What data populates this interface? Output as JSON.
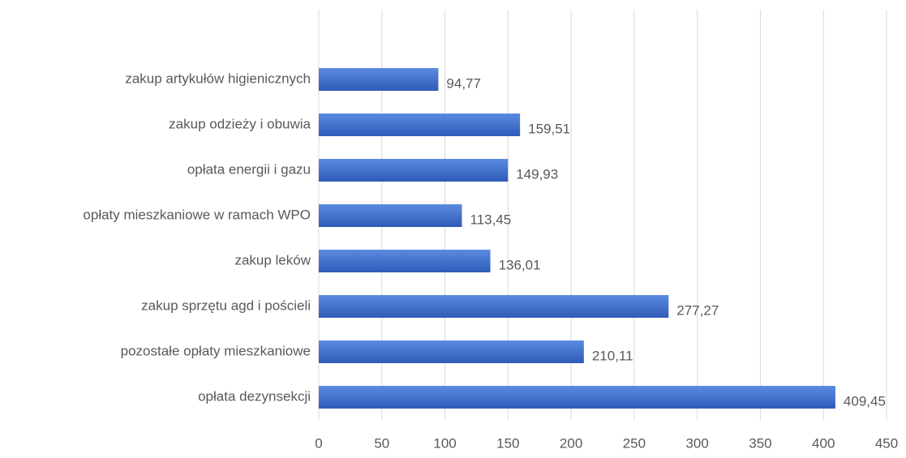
{
  "chart_data": {
    "type": "bar",
    "orientation": "horizontal",
    "categories": [
      "zakup artykułów higienicznych",
      "zakup odzieży i obuwia",
      "opłata energii i gazu",
      "opłaty mieszkaniowe w ramach WPO",
      "zakup leków",
      "zakup sprzętu agd i pościeli",
      "pozostałe opłaty mieszkaniowe",
      "opłata dezynsekcji"
    ],
    "values": [
      94.77,
      159.51,
      149.93,
      113.45,
      136.01,
      277.27,
      210.11,
      409.45
    ],
    "value_labels": [
      "94,77",
      "159,51",
      "149,93",
      "113,45",
      "136,01",
      "277,27",
      "210,11",
      "409,45"
    ],
    "color": "#4472c4",
    "xlim": [
      0,
      450
    ],
    "xticks": [
      0,
      50,
      100,
      150,
      200,
      250,
      300,
      350,
      400,
      450
    ],
    "grid": true
  }
}
